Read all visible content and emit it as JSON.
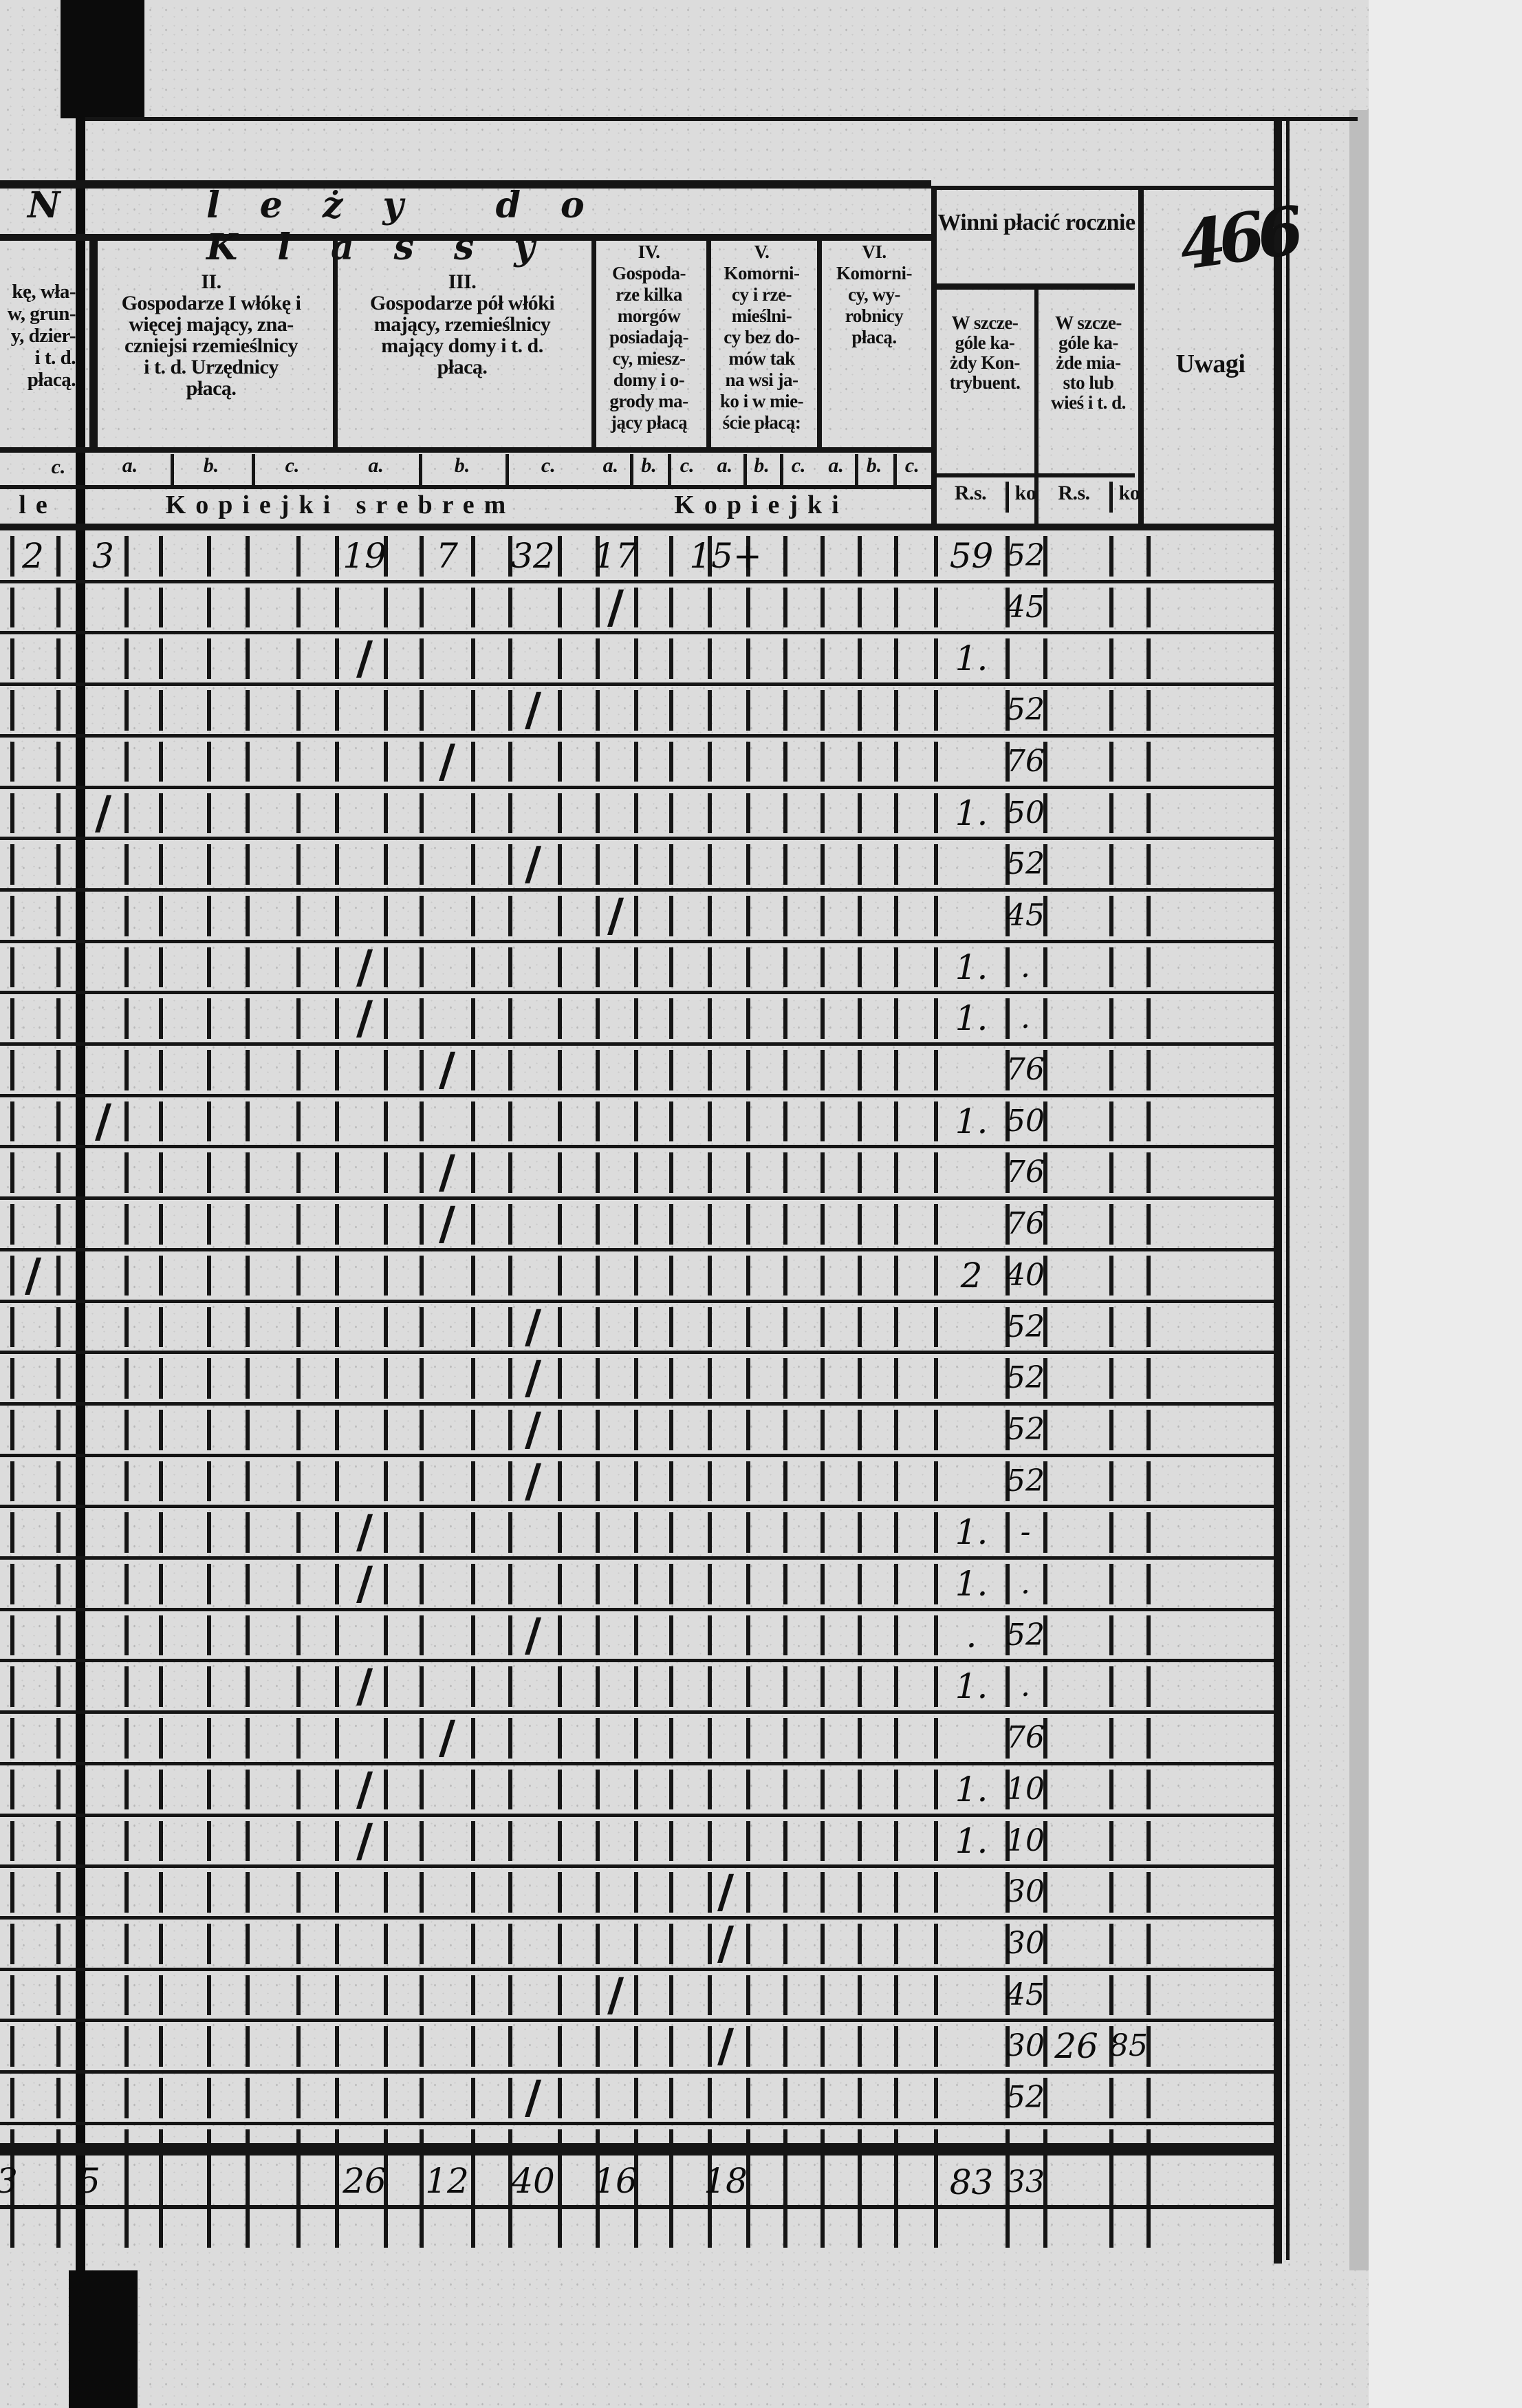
{
  "page_number": "466",
  "header": {
    "title_fragment_left": "N",
    "title": "leży do Klassy",
    "class_I_fragment": [
      "kę, wła-",
      "w, grun-",
      "y, dzier-",
      "i t. d.",
      "płacą."
    ],
    "class_I_sub": "c.",
    "class_I_unit": "le",
    "classes": [
      {
        "key": "II",
        "lines": [
          "II.",
          "Gospodarze I włókę i",
          "więcej mający, zna-",
          "czniejsi rzemieślnicy",
          "i t. d. Urzędnicy",
          "płacą."
        ]
      },
      {
        "key": "III",
        "lines": [
          "III.",
          "Gospodarze pół włóki",
          "mający, rzemieślnicy",
          "mający domy i t. d.",
          "płacą."
        ]
      },
      {
        "key": "IV",
        "lines": [
          "IV.",
          "Gospoda-",
          "rze kilka",
          "morgów",
          "posiadają-",
          "cy, miesz-",
          "domy i o-",
          "grody ma-",
          "jący płacą"
        ]
      },
      {
        "key": "V",
        "lines": [
          "V.",
          "Komorni-",
          "cy i rze-",
          "mieślni-",
          "cy bez do-",
          "mów tak",
          "na wsi ja-",
          "ko i w mie-",
          "ście płacą:"
        ]
      },
      {
        "key": "VI",
        "lines": [
          "VI.",
          "Komorni-",
          "cy, wy-",
          "robnicy",
          "płacą."
        ]
      }
    ],
    "subcols": [
      "a.",
      "b.",
      "c."
    ],
    "unit_srebrem": "Kopiejki srebrem",
    "unit_kopiejki": "Kopiejki",
    "winni": {
      "title": "Winni płacić rocznie",
      "col1": [
        "W szcze-",
        "góle ka-",
        "żdy Kon-",
        "trybuent."
      ],
      "col2": [
        "W szcze-",
        "góle ka-",
        "żde mia-",
        "sto lub",
        "wieś i t. d."
      ],
      "rs": "R.s.",
      "ko": "ko"
    },
    "uwagi": "Uwagi"
  },
  "rows": [
    {
      "marks": [
        {
          "col": "I.c",
          "text": "2"
        },
        {
          "col": "II.a",
          "text": "3"
        },
        {
          "col": "III.a",
          "text": "19"
        },
        {
          "col": "III.b",
          "text": "7"
        },
        {
          "col": "III.c",
          "text": "32"
        },
        {
          "col": "IV.a",
          "text": "17"
        },
        {
          "col": "V.a",
          "text": "15+"
        }
      ],
      "rs": "59",
      "ko": "52"
    },
    {
      "marks": [
        {
          "col": "IV.a",
          "text": "/"
        }
      ],
      "rs": "",
      "ko": "45"
    },
    {
      "marks": [
        {
          "col": "III.a",
          "text": "/"
        }
      ],
      "rs": "1.",
      "ko": ""
    },
    {
      "marks": [
        {
          "col": "III.c",
          "text": "/"
        }
      ],
      "rs": "",
      "ko": "52"
    },
    {
      "marks": [
        {
          "col": "III.b",
          "text": "/"
        }
      ],
      "rs": "",
      "ko": "76"
    },
    {
      "marks": [
        {
          "col": "II.a",
          "text": "/"
        }
      ],
      "rs": "1.",
      "ko": "50"
    },
    {
      "marks": [
        {
          "col": "III.c",
          "text": "/"
        }
      ],
      "rs": "",
      "ko": "52"
    },
    {
      "marks": [
        {
          "col": "IV.a",
          "text": "/"
        }
      ],
      "rs": "",
      "ko": "45"
    },
    {
      "marks": [
        {
          "col": "III.a",
          "text": "/"
        }
      ],
      "rs": "1.",
      "ko": "."
    },
    {
      "marks": [
        {
          "col": "III.a",
          "text": "/"
        }
      ],
      "rs": "1.",
      "ko": "."
    },
    {
      "marks": [
        {
          "col": "III.b",
          "text": "/"
        }
      ],
      "rs": "",
      "ko": "76"
    },
    {
      "marks": [
        {
          "col": "II.a",
          "text": "/"
        }
      ],
      "rs": "1.",
      "ko": "50"
    },
    {
      "marks": [
        {
          "col": "III.b",
          "text": "/"
        }
      ],
      "rs": "",
      "ko": "76"
    },
    {
      "marks": [
        {
          "col": "III.b",
          "text": "/"
        }
      ],
      "rs": "",
      "ko": "76"
    },
    {
      "marks": [
        {
          "col": "I.c",
          "text": "/"
        }
      ],
      "rs": "2",
      "ko": "40"
    },
    {
      "marks": [
        {
          "col": "III.c",
          "text": "/"
        }
      ],
      "rs": "",
      "ko": "52"
    },
    {
      "marks": [
        {
          "col": "III.c",
          "text": "/"
        }
      ],
      "rs": "",
      "ko": "52"
    },
    {
      "marks": [
        {
          "col": "III.c",
          "text": "/"
        }
      ],
      "rs": "",
      "ko": "52"
    },
    {
      "marks": [
        {
          "col": "III.c",
          "text": "/"
        }
      ],
      "rs": "",
      "ko": "52"
    },
    {
      "marks": [
        {
          "col": "III.a",
          "text": "/"
        }
      ],
      "rs": "1.",
      "ko": "-"
    },
    {
      "marks": [
        {
          "col": "III.a",
          "text": "/"
        }
      ],
      "rs": "1.",
      "ko": "."
    },
    {
      "marks": [
        {
          "col": "III.c",
          "text": "/"
        }
      ],
      "rs": ".",
      "ko": "52"
    },
    {
      "marks": [
        {
          "col": "III.a",
          "text": "/"
        }
      ],
      "rs": "1.",
      "ko": "."
    },
    {
      "marks": [
        {
          "col": "III.b",
          "text": "/"
        }
      ],
      "rs": "",
      "ko": "76"
    },
    {
      "marks": [
        {
          "col": "III.a",
          "text": "/"
        }
      ],
      "rs": "1.",
      "ko": "10"
    },
    {
      "marks": [
        {
          "col": "III.a",
          "text": "/"
        }
      ],
      "rs": "1.",
      "ko": "10"
    },
    {
      "marks": [
        {
          "col": "V.a",
          "text": "/"
        }
      ],
      "rs": "",
      "ko": "30"
    },
    {
      "marks": [
        {
          "col": "V.a",
          "text": "/"
        }
      ],
      "rs": "",
      "ko": "30"
    },
    {
      "marks": [
        {
          "col": "IV.a",
          "text": "/"
        }
      ],
      "rs": "",
      "ko": "45"
    },
    {
      "marks": [
        {
          "col": "V.a",
          "text": "/"
        }
      ],
      "rs": "",
      "ko": "30",
      "rs2": "26",
      "ko2": "85"
    },
    {
      "marks": [
        {
          "col": "III.c",
          "text": "/"
        }
      ],
      "rs": "",
      "ko": "52"
    }
  ],
  "totals": {
    "marks": [
      {
        "col": "I.b",
        "text": "3"
      },
      {
        "col": "I.c",
        "text": "5"
      },
      {
        "col": "III.a",
        "text": "26"
      },
      {
        "col": "III.b",
        "text": "12"
      },
      {
        "col": "III.c",
        "text": "40"
      },
      {
        "col": "IV.a",
        "text": "16"
      },
      {
        "col": "V.a",
        "text": "18"
      }
    ],
    "rs": "83",
    "ko": "33"
  }
}
